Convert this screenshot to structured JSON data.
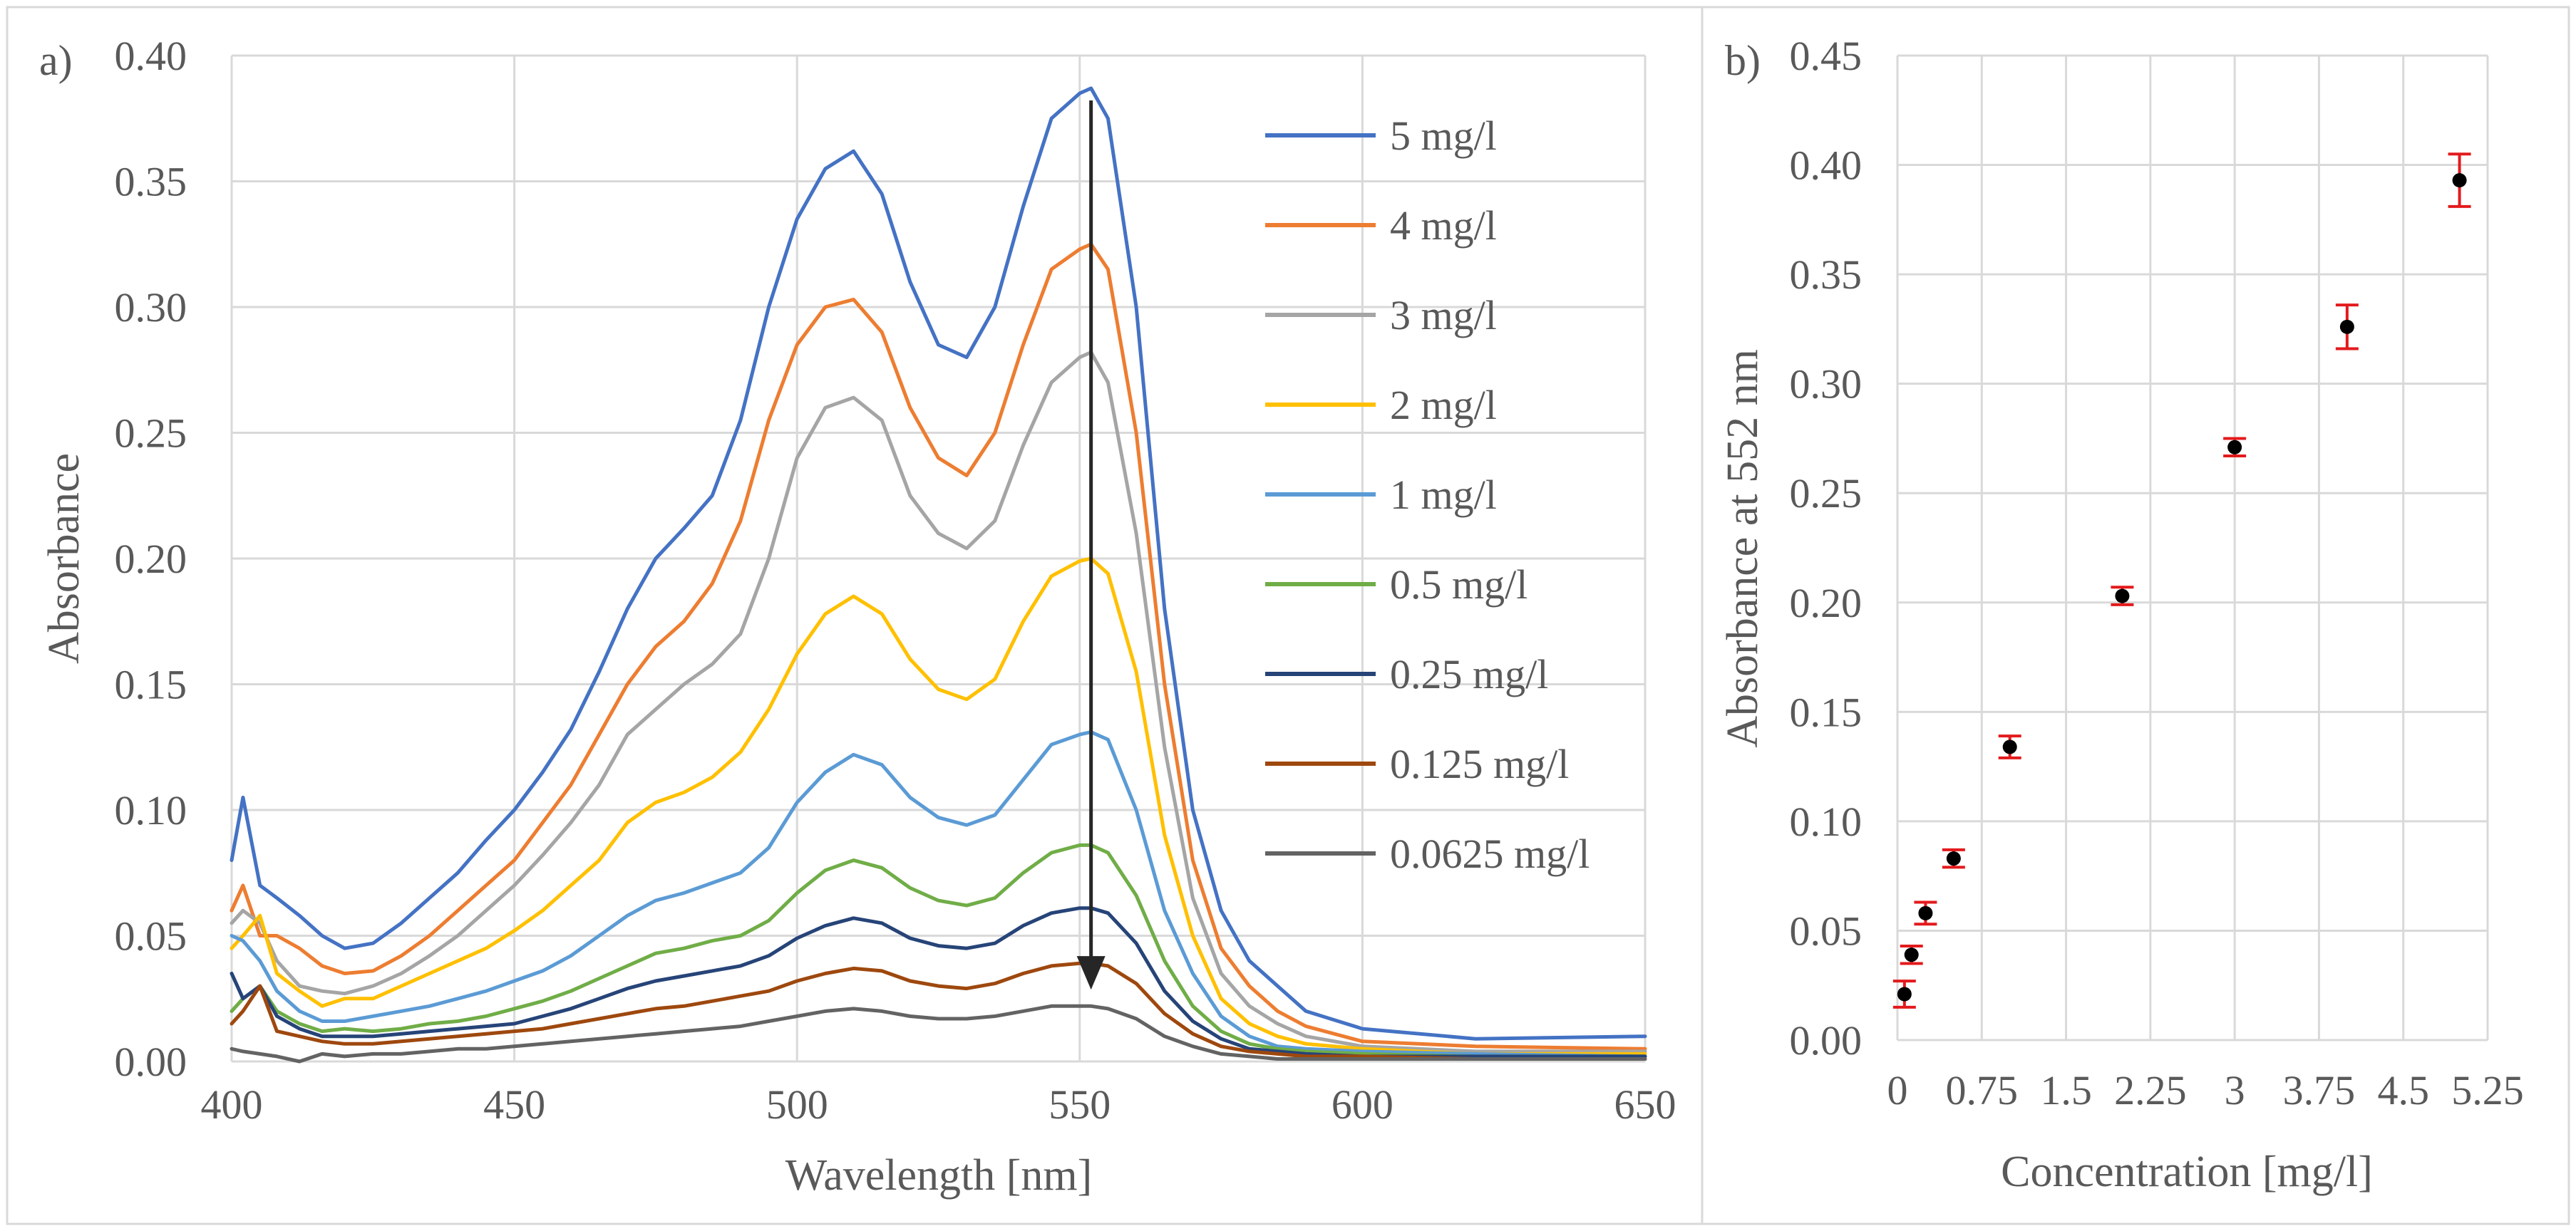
{
  "figure": {
    "panel_a_label": "a)",
    "panel_b_label": "b)"
  },
  "chart_data": [
    {
      "type": "line",
      "panel": "a)",
      "title": "",
      "xlabel": "Wavelength [nm]",
      "ylabel": "Absorbance",
      "xlim": [
        400,
        650
      ],
      "ylim": [
        0,
        0.4
      ],
      "x_ticks": [
        "400",
        "450",
        "500",
        "550",
        "600",
        "650"
      ],
      "y_ticks": [
        "0.00",
        "0.05",
        "0.10",
        "0.15",
        "0.20",
        "0.25",
        "0.30",
        "0.35",
        "0.40"
      ],
      "grid": true,
      "legend_position": "right",
      "annotation": "downward arrow at 552 nm",
      "annotation_x": 552,
      "annotation_y_range": [
        0.385,
        0.03
      ],
      "series": [
        {
          "name": "5 mg/l",
          "color": "#4472C4",
          "x": [
            400,
            402,
            405,
            408,
            412,
            416,
            420,
            425,
            430,
            435,
            440,
            445,
            450,
            455,
            460,
            465,
            470,
            475,
            480,
            485,
            490,
            495,
            500,
            505,
            510,
            515,
            520,
            525,
            530,
            535,
            540,
            545,
            550,
            552,
            555,
            560,
            565,
            570,
            575,
            580,
            585,
            590,
            600,
            620,
            650
          ],
          "y": [
            0.08,
            0.105,
            0.07,
            0.065,
            0.058,
            0.05,
            0.045,
            0.047,
            0.055,
            0.065,
            0.075,
            0.088,
            0.1,
            0.115,
            0.132,
            0.155,
            0.18,
            0.2,
            0.212,
            0.225,
            0.255,
            0.3,
            0.335,
            0.355,
            0.362,
            0.345,
            0.31,
            0.285,
            0.28,
            0.3,
            0.34,
            0.375,
            0.385,
            0.387,
            0.375,
            0.3,
            0.18,
            0.1,
            0.06,
            0.04,
            0.03,
            0.02,
            0.013,
            0.009,
            0.01
          ]
        },
        {
          "name": "4 mg/l",
          "color": "#ED7D31",
          "x": [
            400,
            402,
            405,
            408,
            412,
            416,
            420,
            425,
            430,
            435,
            440,
            445,
            450,
            455,
            460,
            465,
            470,
            475,
            480,
            485,
            490,
            495,
            500,
            505,
            510,
            515,
            520,
            525,
            530,
            535,
            540,
            545,
            550,
            552,
            555,
            560,
            565,
            570,
            575,
            580,
            585,
            590,
            600,
            620,
            650
          ],
          "y": [
            0.06,
            0.07,
            0.05,
            0.05,
            0.045,
            0.038,
            0.035,
            0.036,
            0.042,
            0.05,
            0.06,
            0.07,
            0.08,
            0.095,
            0.11,
            0.13,
            0.15,
            0.165,
            0.175,
            0.19,
            0.215,
            0.255,
            0.285,
            0.3,
            0.303,
            0.29,
            0.26,
            0.24,
            0.233,
            0.25,
            0.285,
            0.315,
            0.323,
            0.325,
            0.315,
            0.25,
            0.15,
            0.08,
            0.045,
            0.03,
            0.02,
            0.014,
            0.008,
            0.006,
            0.005
          ]
        },
        {
          "name": "3 mg/l",
          "color": "#A5A5A5",
          "x": [
            400,
            402,
            405,
            408,
            412,
            416,
            420,
            425,
            430,
            435,
            440,
            445,
            450,
            455,
            460,
            465,
            470,
            475,
            480,
            485,
            490,
            495,
            500,
            505,
            510,
            515,
            520,
            525,
            530,
            535,
            540,
            545,
            550,
            552,
            555,
            560,
            565,
            570,
            575,
            580,
            585,
            590,
            600,
            620,
            650
          ],
          "y": [
            0.055,
            0.06,
            0.055,
            0.04,
            0.03,
            0.028,
            0.027,
            0.03,
            0.035,
            0.042,
            0.05,
            0.06,
            0.07,
            0.082,
            0.095,
            0.11,
            0.13,
            0.14,
            0.15,
            0.158,
            0.17,
            0.2,
            0.24,
            0.26,
            0.264,
            0.255,
            0.225,
            0.21,
            0.204,
            0.215,
            0.245,
            0.27,
            0.28,
            0.282,
            0.27,
            0.21,
            0.125,
            0.065,
            0.035,
            0.022,
            0.015,
            0.01,
            0.006,
            0.004,
            0.004
          ]
        },
        {
          "name": "2 mg/l",
          "color": "#FFC000",
          "x": [
            400,
            402,
            405,
            408,
            412,
            416,
            420,
            425,
            430,
            435,
            440,
            445,
            450,
            455,
            460,
            465,
            470,
            475,
            480,
            485,
            490,
            495,
            500,
            505,
            510,
            515,
            520,
            525,
            530,
            535,
            540,
            545,
            550,
            552,
            555,
            560,
            565,
            570,
            575,
            580,
            585,
            590,
            600,
            620,
            650
          ],
          "y": [
            0.045,
            0.05,
            0.058,
            0.035,
            0.028,
            0.022,
            0.025,
            0.025,
            0.03,
            0.035,
            0.04,
            0.045,
            0.052,
            0.06,
            0.07,
            0.08,
            0.095,
            0.103,
            0.107,
            0.113,
            0.123,
            0.14,
            0.162,
            0.178,
            0.185,
            0.178,
            0.16,
            0.148,
            0.144,
            0.152,
            0.175,
            0.193,
            0.199,
            0.2,
            0.194,
            0.155,
            0.09,
            0.05,
            0.025,
            0.015,
            0.01,
            0.007,
            0.005,
            0.003,
            0.003
          ]
        },
        {
          "name": "1 mg/l",
          "color": "#5B9BD5",
          "x": [
            400,
            402,
            405,
            408,
            412,
            416,
            420,
            425,
            430,
            435,
            440,
            445,
            450,
            455,
            460,
            465,
            470,
            475,
            480,
            485,
            490,
            495,
            500,
            505,
            510,
            515,
            520,
            525,
            530,
            535,
            540,
            545,
            550,
            552,
            555,
            560,
            565,
            570,
            575,
            580,
            585,
            590,
            600,
            620,
            650
          ],
          "y": [
            0.05,
            0.048,
            0.04,
            0.028,
            0.02,
            0.016,
            0.016,
            0.018,
            0.02,
            0.022,
            0.025,
            0.028,
            0.032,
            0.036,
            0.042,
            0.05,
            0.058,
            0.064,
            0.067,
            0.071,
            0.075,
            0.085,
            0.103,
            0.115,
            0.122,
            0.118,
            0.105,
            0.097,
            0.094,
            0.098,
            0.112,
            0.126,
            0.13,
            0.131,
            0.128,
            0.1,
            0.06,
            0.035,
            0.018,
            0.01,
            0.006,
            0.005,
            0.004,
            0.003,
            0.002
          ]
        },
        {
          "name": "0.5 mg/l",
          "color": "#70AD47",
          "x": [
            400,
            402,
            405,
            408,
            412,
            416,
            420,
            425,
            430,
            435,
            440,
            445,
            450,
            455,
            460,
            465,
            470,
            475,
            480,
            485,
            490,
            495,
            500,
            505,
            510,
            515,
            520,
            525,
            530,
            535,
            540,
            545,
            550,
            552,
            555,
            560,
            565,
            570,
            575,
            580,
            585,
            590,
            600,
            620,
            650
          ],
          "y": [
            0.02,
            0.025,
            0.03,
            0.02,
            0.015,
            0.012,
            0.013,
            0.012,
            0.013,
            0.015,
            0.016,
            0.018,
            0.021,
            0.024,
            0.028,
            0.033,
            0.038,
            0.043,
            0.045,
            0.048,
            0.05,
            0.056,
            0.067,
            0.076,
            0.08,
            0.077,
            0.069,
            0.064,
            0.062,
            0.065,
            0.075,
            0.083,
            0.086,
            0.086,
            0.083,
            0.066,
            0.04,
            0.022,
            0.012,
            0.007,
            0.005,
            0.004,
            0.003,
            0.002,
            0.002
          ]
        },
        {
          "name": "0.25 mg/l",
          "color": "#264478",
          "x": [
            400,
            402,
            405,
            408,
            412,
            416,
            420,
            425,
            430,
            435,
            440,
            445,
            450,
            455,
            460,
            465,
            470,
            475,
            480,
            485,
            490,
            495,
            500,
            505,
            510,
            515,
            520,
            525,
            530,
            535,
            540,
            545,
            550,
            552,
            555,
            560,
            565,
            570,
            575,
            580,
            585,
            590,
            600,
            620,
            650
          ],
          "y": [
            0.035,
            0.025,
            0.03,
            0.018,
            0.013,
            0.01,
            0.01,
            0.01,
            0.011,
            0.012,
            0.013,
            0.014,
            0.015,
            0.018,
            0.021,
            0.025,
            0.029,
            0.032,
            0.034,
            0.036,
            0.038,
            0.042,
            0.049,
            0.054,
            0.057,
            0.055,
            0.049,
            0.046,
            0.045,
            0.047,
            0.054,
            0.059,
            0.061,
            0.061,
            0.059,
            0.047,
            0.028,
            0.016,
            0.009,
            0.005,
            0.004,
            0.003,
            0.002,
            0.002,
            0.002
          ]
        },
        {
          "name": "0.125 mg/l",
          "color": "#9E480E",
          "x": [
            400,
            402,
            405,
            408,
            412,
            416,
            420,
            425,
            430,
            435,
            440,
            445,
            450,
            455,
            460,
            465,
            470,
            475,
            480,
            485,
            490,
            495,
            500,
            505,
            510,
            515,
            520,
            525,
            530,
            535,
            540,
            545,
            550,
            552,
            555,
            560,
            565,
            570,
            575,
            580,
            585,
            590,
            600,
            620,
            650
          ],
          "y": [
            0.015,
            0.02,
            0.03,
            0.012,
            0.01,
            0.008,
            0.007,
            0.007,
            0.008,
            0.009,
            0.01,
            0.011,
            0.012,
            0.013,
            0.015,
            0.017,
            0.019,
            0.021,
            0.022,
            0.024,
            0.026,
            0.028,
            0.032,
            0.035,
            0.037,
            0.036,
            0.032,
            0.03,
            0.029,
            0.031,
            0.035,
            0.038,
            0.039,
            0.039,
            0.038,
            0.031,
            0.019,
            0.011,
            0.006,
            0.004,
            0.003,
            0.002,
            0.002,
            0.001,
            0.001
          ]
        },
        {
          "name": "0.0625 mg/l",
          "color": "#636363",
          "x": [
            400,
            402,
            405,
            408,
            412,
            416,
            420,
            425,
            430,
            435,
            440,
            445,
            450,
            455,
            460,
            465,
            470,
            475,
            480,
            485,
            490,
            495,
            500,
            505,
            510,
            515,
            520,
            525,
            530,
            535,
            540,
            545,
            550,
            552,
            555,
            560,
            565,
            570,
            575,
            580,
            585,
            590,
            600,
            620,
            650
          ],
          "y": [
            0.005,
            0.004,
            0.003,
            0.002,
            0.0,
            0.003,
            0.002,
            0.003,
            0.003,
            0.004,
            0.005,
            0.005,
            0.006,
            0.007,
            0.008,
            0.009,
            0.01,
            0.011,
            0.012,
            0.013,
            0.014,
            0.016,
            0.018,
            0.02,
            0.021,
            0.02,
            0.018,
            0.017,
            0.017,
            0.018,
            0.02,
            0.022,
            0.022,
            0.022,
            0.021,
            0.017,
            0.01,
            0.006,
            0.003,
            0.002,
            0.001,
            0.001,
            0.001,
            0.001,
            0.001
          ]
        }
      ]
    },
    {
      "type": "scatter",
      "panel": "b)",
      "title": "",
      "xlabel": "Concentration [mg/l]",
      "ylabel": "Absorbance at 552 nm",
      "xlim": [
        0,
        5.25
      ],
      "ylim": [
        0,
        0.45
      ],
      "x_ticks": [
        "0",
        "0.75",
        "1.5",
        "2.25",
        "3",
        "3.75",
        "4.5",
        "5.25"
      ],
      "y_ticks": [
        "0.00",
        "0.05",
        "0.10",
        "0.15",
        "0.20",
        "0.25",
        "0.30",
        "0.35",
        "0.40",
        "0.45"
      ],
      "grid": true,
      "marker_color": "#000000",
      "error_bar_color": "#E31A1C",
      "points": [
        {
          "x": 0.0625,
          "y": 0.021,
          "err": 0.006
        },
        {
          "x": 0.125,
          "y": 0.039,
          "err": 0.004
        },
        {
          "x": 0.25,
          "y": 0.058,
          "err": 0.005
        },
        {
          "x": 0.5,
          "y": 0.083,
          "err": 0.004
        },
        {
          "x": 1,
          "y": 0.134,
          "err": 0.005
        },
        {
          "x": 2,
          "y": 0.203,
          "err": 0.004
        },
        {
          "x": 3,
          "y": 0.271,
          "err": 0.004
        },
        {
          "x": 4,
          "y": 0.326,
          "err": 0.01
        },
        {
          "x": 5,
          "y": 0.393,
          "err": 0.012
        }
      ]
    }
  ]
}
